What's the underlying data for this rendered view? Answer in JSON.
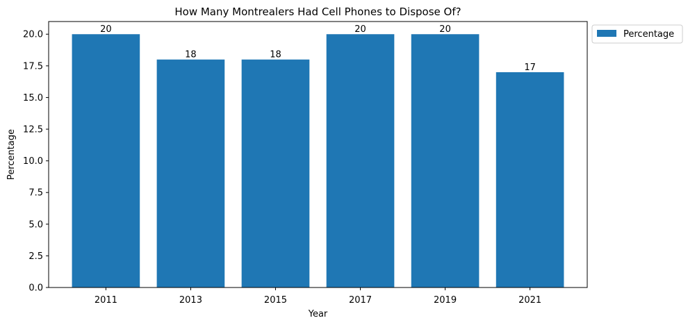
{
  "chart_data": {
    "type": "bar",
    "title": "How Many Montrealers Had Cell Phones to Dispose Of?",
    "xlabel": "Year",
    "ylabel": "Percentage",
    "categories": [
      "2011",
      "2013",
      "2015",
      "2017",
      "2019",
      "2021"
    ],
    "series": [
      {
        "name": "Percentage",
        "values": [
          20,
          18,
          18,
          20,
          20,
          17
        ],
        "color": "#1f77b4"
      }
    ],
    "data_labels": [
      "20",
      "18",
      "18",
      "20",
      "20",
      "17"
    ],
    "ylim": [
      0,
      21
    ],
    "yticks": [
      0.0,
      2.5,
      5.0,
      7.5,
      10.0,
      12.5,
      15.0,
      17.5,
      20.0
    ],
    "ytick_labels": [
      "0.0",
      "2.5",
      "5.0",
      "7.5",
      "10.0",
      "12.5",
      "15.0",
      "17.5",
      "20.0"
    ],
    "grid": false,
    "legend": {
      "placement": "outside-top-right",
      "entries": [
        "Percentage"
      ]
    }
  }
}
